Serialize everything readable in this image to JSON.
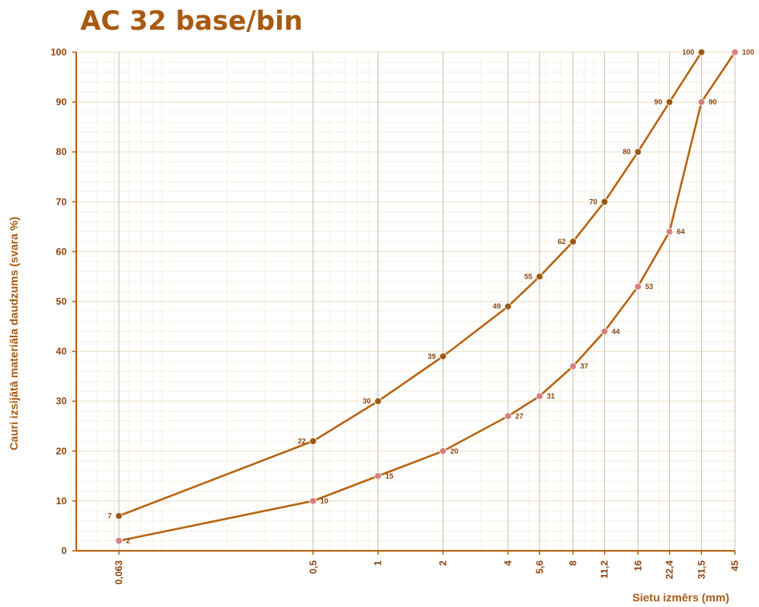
{
  "chart_data": {
    "type": "line",
    "title": "AC 32 base/bin",
    "xlabel": "Sietu izmērs (mm)",
    "ylabel": "Cauri izsijātā materiāla daudzums (svara %)",
    "x_scale": "log",
    "ylim": [
      0,
      100
    ],
    "y_ticks": [
      "0",
      "10",
      "20",
      "30",
      "40",
      "50",
      "60",
      "70",
      "80",
      "90",
      "100"
    ],
    "x": [
      0.063,
      0.5,
      1,
      2,
      4,
      5.6,
      8,
      11.2,
      16,
      22.4,
      31.5,
      45
    ],
    "x_tick_labels": [
      "0,063",
      "0,5",
      "1",
      "2",
      "4",
      "5,6",
      "8",
      "11,2",
      "16",
      "22,4",
      "31,5",
      "45"
    ],
    "grid": true,
    "series": [
      {
        "x": [
          0.063,
          0.5,
          1,
          2,
          4,
          5.6,
          8,
          11.2,
          16,
          22.4,
          31.5
        ],
        "values": [
          7,
          22,
          30,
          39,
          49,
          55,
          62,
          70,
          80,
          90,
          100
        ],
        "labels": [
          "7",
          "22",
          "30",
          "39",
          "49",
          "55",
          "62",
          "70",
          "80",
          "90",
          "100"
        ],
        "label_side": "left",
        "color": "#b5630f",
        "marker_color": "#9c5a10"
      },
      {
        "x": [
          0.063,
          0.5,
          1,
          2,
          4,
          5.6,
          8,
          11.2,
          16,
          22.4,
          31.5,
          45
        ],
        "values": [
          2,
          10,
          15,
          20,
          27,
          31,
          37,
          44,
          53,
          64,
          90,
          100
        ],
        "labels": [
          "2",
          "10",
          "15",
          "20",
          "27",
          "31",
          "37",
          "44",
          "53",
          "64",
          "90",
          "100"
        ],
        "label_side": "right",
        "color": "#b5630f",
        "marker_color": "#d77f80"
      }
    ],
    "colors": {
      "title": "#a85a12",
      "axis": "#b5630f",
      "text": "#8b4513",
      "grid_major": "#f1e2cf",
      "grid_minor": "#f8efe4",
      "sieve_line": "#c9c0b4"
    }
  }
}
